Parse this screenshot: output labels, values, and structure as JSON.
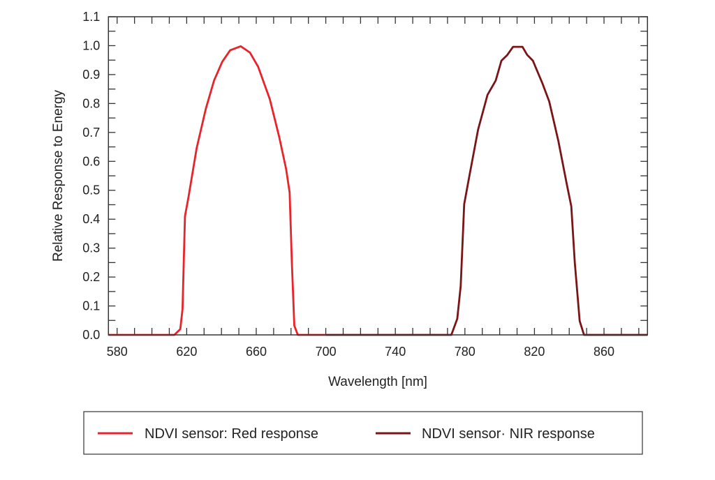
{
  "chart_data": {
    "type": "line",
    "title": "",
    "xlabel": "Wavelength [nm]",
    "ylabel": "Relative Response to Energy",
    "xlim": [
      575,
      885
    ],
    "ylim": [
      0,
      1.1
    ],
    "x_ticks": [
      580,
      620,
      660,
      700,
      740,
      780,
      820,
      860
    ],
    "x_minor_step": 10,
    "y_ticks": [
      "0.0",
      "0.1",
      "0.2",
      "0.3",
      "0.4",
      "0.5",
      "0.6",
      "0.7",
      "0.8",
      "0.9",
      "1.0",
      "1.1"
    ],
    "y_minor_step": 0.05,
    "grid": false,
    "legend_position": "bottom",
    "series": [
      {
        "name": "NDVI sensor: Red response",
        "color": "#e8232a",
        "x": [
          575,
          612.9,
          616.3,
          617.6,
          619,
          621,
          625.7,
          631,
          635.7,
          640.4,
          645,
          651.1,
          656.4,
          661.1,
          667.8,
          673.2,
          677.2,
          679.2,
          680.5,
          681.9,
          683.9,
          700
        ],
        "y": [
          0,
          0,
          0.02,
          0.089,
          0.41,
          0.476,
          0.645,
          0.782,
          0.879,
          0.944,
          0.984,
          0.998,
          0.976,
          0.927,
          0.815,
          0.685,
          0.573,
          0.492,
          0.25,
          0.032,
          0,
          0
        ]
      },
      {
        "name": "NDVI sensor· NIR response",
        "color": "#7a1416",
        "x": [
          700,
          772.2,
          775.6,
          777.6,
          779.6,
          782.3,
          787.6,
          793,
          797.7,
          801,
          804.4,
          807.7,
          813.1,
          815.8,
          819.1,
          824.5,
          828.5,
          833.8,
          838.5,
          841.2,
          843.2,
          846,
          848.5,
          885
        ],
        "y": [
          0,
          0,
          0.056,
          0.169,
          0.452,
          0.54,
          0.71,
          0.83,
          0.879,
          0.948,
          0.968,
          0.996,
          0.996,
          0.968,
          0.948,
          0.871,
          0.807,
          0.669,
          0.524,
          0.444,
          0.25,
          0.048,
          0,
          0
        ]
      }
    ]
  }
}
